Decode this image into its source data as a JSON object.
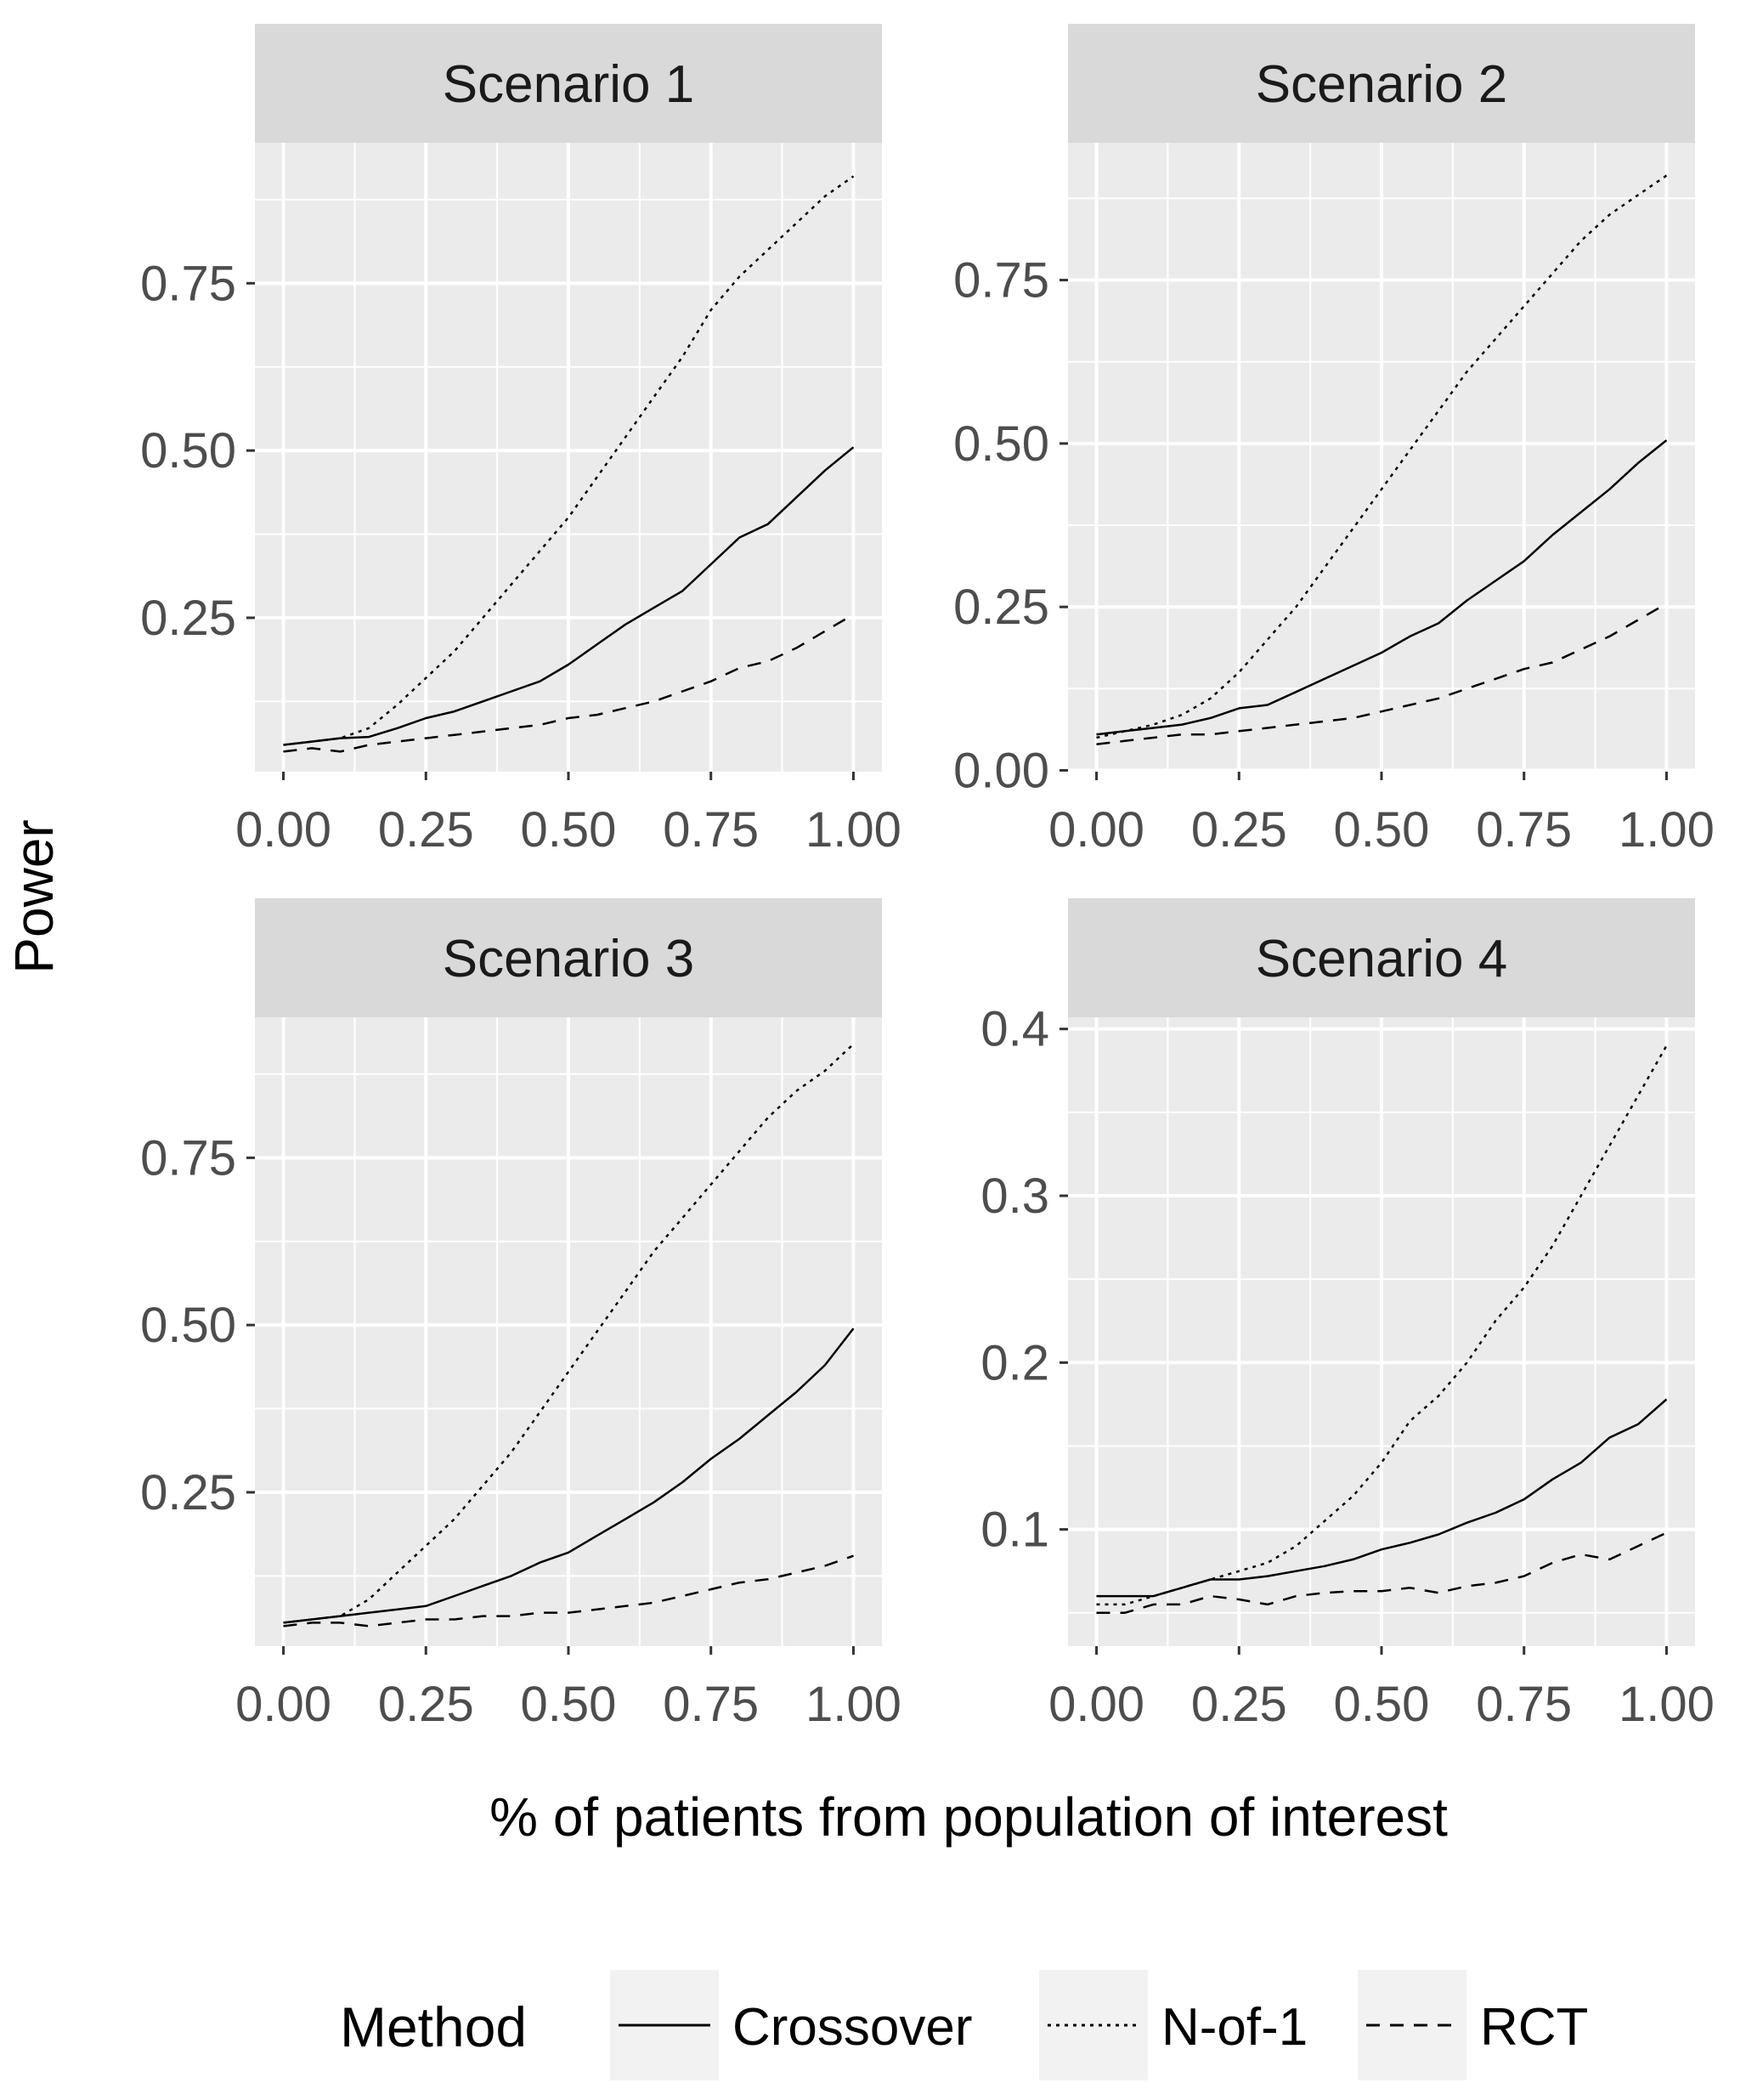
{
  "chart_data": {
    "type": "line",
    "ylabel": "Power",
    "xlabel": "% of patients from population of interest",
    "legend": {
      "title": "Method",
      "position": "bottom",
      "entries": [
        {
          "name": "Crossover",
          "linetype": "solid"
        },
        {
          "name": "N-of-1",
          "linetype": "dotted"
        },
        {
          "name": "RCT",
          "linetype": "dashed"
        }
      ]
    },
    "panels": [
      {
        "title": "Scenario 1",
        "xlim": [
          -0.05,
          1.05
        ],
        "ylim": [
          0.02,
          0.96
        ],
        "x_ticks": [
          0,
          0.25,
          0.5,
          0.75,
          1
        ],
        "x_tick_labels": [
          "0.00",
          "0.25",
          "0.50",
          "0.75",
          "1.00"
        ],
        "y_ticks": [
          0.25,
          0.5,
          0.75
        ],
        "y_tick_labels": [
          "0.25",
          "0.50",
          "0.75"
        ],
        "x": [
          0,
          0.05,
          0.1,
          0.15,
          0.2,
          0.25,
          0.3,
          0.35,
          0.4,
          0.45,
          0.5,
          0.55,
          0.6,
          0.65,
          0.7,
          0.75,
          0.8,
          0.85,
          0.9,
          0.95,
          1
        ],
        "series": [
          {
            "name": "Crossover",
            "values": [
              0.06,
              0.065,
              0.07,
              0.072,
              0.085,
              0.1,
              0.11,
              0.125,
              0.14,
              0.155,
              0.18,
              0.21,
              0.24,
              0.265,
              0.29,
              0.33,
              0.37,
              0.39,
              0.43,
              0.47,
              0.505
            ]
          },
          {
            "name": "N-of-1",
            "values": [
              0.06,
              0.065,
              0.07,
              0.085,
              0.12,
              0.16,
              0.2,
              0.25,
              0.3,
              0.35,
              0.4,
              0.46,
              0.52,
              0.58,
              0.64,
              0.71,
              0.76,
              0.8,
              0.84,
              0.88,
              0.91
            ]
          },
          {
            "name": "RCT",
            "values": [
              0.05,
              0.055,
              0.05,
              0.06,
              0.065,
              0.07,
              0.075,
              0.08,
              0.085,
              0.09,
              0.1,
              0.105,
              0.115,
              0.125,
              0.14,
              0.155,
              0.175,
              0.185,
              0.205,
              0.23,
              0.255
            ]
          }
        ]
      },
      {
        "title": "Scenario 2",
        "xlim": [
          -0.05,
          1.05
        ],
        "ylim": [
          -0.002,
          0.96
        ],
        "x_ticks": [
          0,
          0.25,
          0.5,
          0.75,
          1
        ],
        "x_tick_labels": [
          "0.00",
          "0.25",
          "0.50",
          "0.75",
          "1.00"
        ],
        "y_ticks": [
          0,
          0.25,
          0.5,
          0.75
        ],
        "y_tick_labels": [
          "0.00",
          "0.25",
          "0.50",
          "0.75"
        ],
        "x": [
          0,
          0.05,
          0.1,
          0.15,
          0.2,
          0.25,
          0.3,
          0.35,
          0.4,
          0.45,
          0.5,
          0.55,
          0.6,
          0.65,
          0.7,
          0.75,
          0.8,
          0.85,
          0.9,
          0.95,
          1
        ],
        "series": [
          {
            "name": "Crossover",
            "values": [
              0.055,
              0.06,
              0.065,
              0.07,
              0.08,
              0.095,
              0.1,
              0.12,
              0.14,
              0.16,
              0.18,
              0.205,
              0.225,
              0.26,
              0.29,
              0.32,
              0.36,
              0.395,
              0.43,
              0.47,
              0.505
            ]
          },
          {
            "name": "N-of-1",
            "values": [
              0.05,
              0.06,
              0.07,
              0.085,
              0.11,
              0.15,
              0.2,
              0.25,
              0.31,
              0.37,
              0.43,
              0.49,
              0.55,
              0.61,
              0.66,
              0.71,
              0.76,
              0.81,
              0.85,
              0.88,
              0.91
            ]
          },
          {
            "name": "RCT",
            "values": [
              0.04,
              0.045,
              0.05,
              0.055,
              0.055,
              0.06,
              0.065,
              0.07,
              0.075,
              0.08,
              0.09,
              0.1,
              0.11,
              0.125,
              0.14,
              0.155,
              0.165,
              0.185,
              0.205,
              0.23,
              0.255
            ]
          }
        ]
      },
      {
        "title": "Scenario 3",
        "xlim": [
          -0.05,
          1.05
        ],
        "ylim": [
          0.02,
          0.96
        ],
        "x_ticks": [
          0,
          0.25,
          0.5,
          0.75,
          1
        ],
        "x_tick_labels": [
          "0.00",
          "0.25",
          "0.50",
          "0.75",
          "1.00"
        ],
        "y_ticks": [
          0.25,
          0.5,
          0.75
        ],
        "y_tick_labels": [
          "0.25",
          "0.50",
          "0.75"
        ],
        "x": [
          0,
          0.05,
          0.1,
          0.15,
          0.2,
          0.25,
          0.3,
          0.35,
          0.4,
          0.45,
          0.5,
          0.55,
          0.6,
          0.65,
          0.7,
          0.75,
          0.8,
          0.85,
          0.9,
          0.95,
          1
        ],
        "series": [
          {
            "name": "Crossover",
            "values": [
              0.055,
              0.06,
              0.065,
              0.07,
              0.075,
              0.08,
              0.095,
              0.11,
              0.125,
              0.145,
              0.16,
              0.185,
              0.21,
              0.235,
              0.265,
              0.3,
              0.33,
              0.365,
              0.4,
              0.44,
              0.495
            ]
          },
          {
            "name": "N-of-1",
            "values": [
              0.055,
              0.06,
              0.065,
              0.09,
              0.13,
              0.17,
              0.21,
              0.26,
              0.31,
              0.37,
              0.43,
              0.49,
              0.55,
              0.61,
              0.66,
              0.71,
              0.76,
              0.81,
              0.85,
              0.88,
              0.92
            ]
          },
          {
            "name": "RCT",
            "values": [
              0.05,
              0.055,
              0.055,
              0.05,
              0.055,
              0.06,
              0.06,
              0.065,
              0.065,
              0.07,
              0.07,
              0.075,
              0.08,
              0.085,
              0.095,
              0.105,
              0.115,
              0.12,
              0.13,
              0.14,
              0.155
            ]
          }
        ]
      },
      {
        "title": "Scenario 4",
        "xlim": [
          -0.05,
          1.05
        ],
        "ylim": [
          0.03,
          0.407
        ],
        "x_ticks": [
          0,
          0.25,
          0.5,
          0.75,
          1
        ],
        "x_tick_labels": [
          "0.00",
          "0.25",
          "0.50",
          "0.75",
          "1.00"
        ],
        "y_ticks": [
          0.1,
          0.2,
          0.3,
          0.4
        ],
        "y_tick_labels": [
          "0.1",
          "0.2",
          "0.3",
          "0.4"
        ],
        "x": [
          0,
          0.05,
          0.1,
          0.15,
          0.2,
          0.25,
          0.3,
          0.35,
          0.4,
          0.45,
          0.5,
          0.55,
          0.6,
          0.65,
          0.7,
          0.75,
          0.8,
          0.85,
          0.9,
          0.95,
          1
        ],
        "series": [
          {
            "name": "Crossover",
            "values": [
              0.06,
              0.06,
              0.06,
              0.065,
              0.07,
              0.07,
              0.072,
              0.075,
              0.078,
              0.082,
              0.088,
              0.092,
              0.097,
              0.104,
              0.11,
              0.118,
              0.13,
              0.14,
              0.155,
              0.163,
              0.178
            ]
          },
          {
            "name": "N-of-1",
            "values": [
              0.055,
              0.055,
              0.06,
              0.065,
              0.07,
              0.075,
              0.08,
              0.09,
              0.105,
              0.12,
              0.14,
              0.165,
              0.18,
              0.2,
              0.225,
              0.245,
              0.27,
              0.3,
              0.33,
              0.36,
              0.39
            ]
          },
          {
            "name": "RCT",
            "values": [
              0.05,
              0.05,
              0.055,
              0.055,
              0.06,
              0.058,
              0.055,
              0.06,
              0.062,
              0.063,
              0.063,
              0.065,
              0.062,
              0.066,
              0.068,
              0.072,
              0.08,
              0.085,
              0.082,
              0.09,
              0.098
            ]
          }
        ]
      }
    ]
  }
}
